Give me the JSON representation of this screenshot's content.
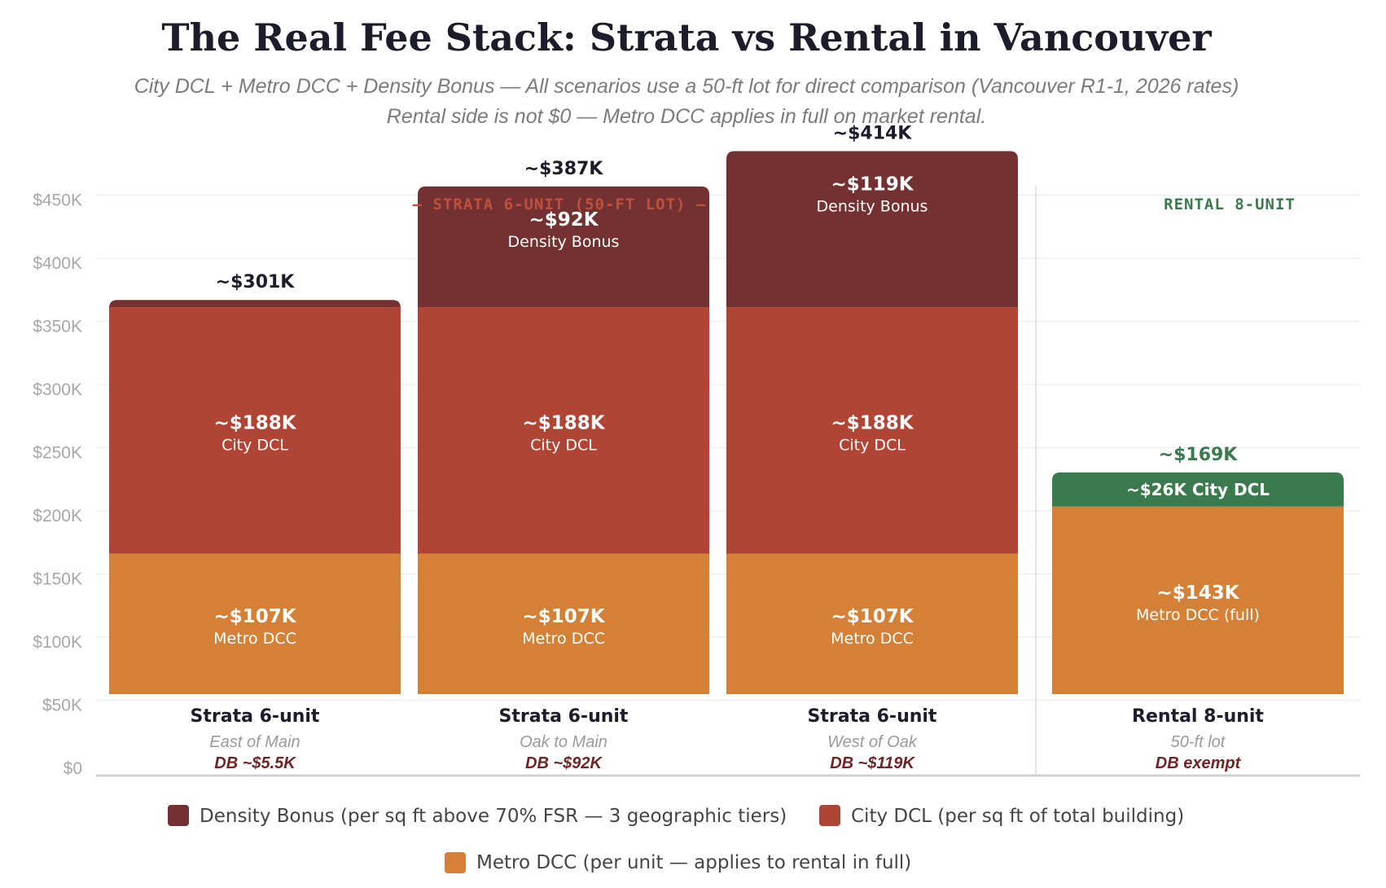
{
  "chart_data": {
    "type": "bar",
    "stacked": true,
    "title": "The Real Fee Stack: Strata vs Rental in Vancouver",
    "subtitle_1": "City DCL + Metro DCC + Density Bonus — All scenarios use a 50-ft lot for direct comparison (Vancouver R1-1, 2026 rates)",
    "subtitle_2": "Rental side is not $0 — Metro DCC applies in full on market rental.",
    "ylim": [
      0,
      450000
    ],
    "y_ticks": [
      "$0",
      "$50K",
      "$100K",
      "$150K",
      "$200K",
      "$250K",
      "$300K",
      "$350K",
      "$400K",
      "$450K"
    ],
    "grid": true,
    "legend_position": "bottom",
    "group_labels": {
      "strata": "— STRATA 6-UNIT (50-FT LOT) —",
      "rental": "RENTAL 8-UNIT"
    },
    "colors": {
      "density_bonus": "#733131",
      "city_dcl": "#b04535",
      "metro_dcc": "#d48137",
      "rental_city_dcl": "#3a7a4c",
      "total_dark": "#1c1c2b",
      "total_green": "#3a7a4c",
      "strata_group": "#c0503c"
    },
    "categories": [
      {
        "name": "Strata 6-unit",
        "sub": "East of Main",
        "db": "DB ~$5.5K",
        "total_label": "~$301K"
      },
      {
        "name": "Strata 6-unit",
        "sub": "Oak to Main",
        "db": "DB ~$92K",
        "total_label": "~$387K"
      },
      {
        "name": "Strata 6-unit",
        "sub": "West of Oak",
        "db": "DB ~$119K",
        "total_label": "~$414K"
      },
      {
        "name": "Rental 8-unit",
        "sub": "50-ft lot",
        "db": "DB exempt",
        "total_label": "~$169K"
      }
    ],
    "series": [
      {
        "name": "Metro DCC (per unit — applies to rental in full)",
        "values": [
          107000,
          107000,
          107000,
          143000
        ],
        "labels": [
          "~$107K",
          "~$107K",
          "~$107K",
          "~$143K"
        ],
        "sublabels": [
          "Metro DCC",
          "Metro DCC",
          "Metro DCC",
          "Metro DCC (full)"
        ]
      },
      {
        "name": "City DCL (per sq ft of total building)",
        "values": [
          188000,
          188000,
          188000,
          26000
        ],
        "labels": [
          "~$188K",
          "~$188K",
          "~$188K",
          "~$26K City DCL"
        ],
        "sublabels": [
          "City DCL",
          "City DCL",
          "City DCL",
          ""
        ]
      },
      {
        "name": "Density Bonus (per sq ft above 70% FSR — 3 geographic tiers)",
        "values": [
          5500,
          92000,
          119000,
          0
        ],
        "labels": [
          "",
          "~$92K",
          "~$119K",
          ""
        ],
        "sublabels": [
          "",
          "Density Bonus",
          "Density Bonus",
          ""
        ]
      }
    ]
  }
}
